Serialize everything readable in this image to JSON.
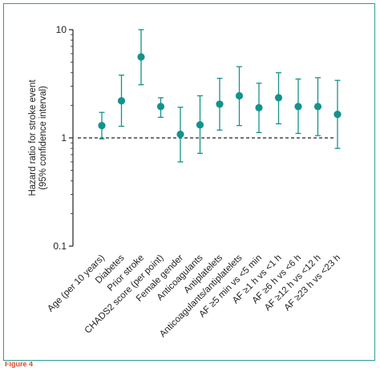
{
  "chart_data": {
    "type": "scatter",
    "subtype": "forest-plot",
    "ylabel_lines": [
      "Hazard ratio for stroke event",
      "(95% confidence interval)"
    ],
    "yscale": "log",
    "ylim": [
      0.1,
      10
    ],
    "yticks": [
      {
        "value": 10,
        "label": "10"
      },
      {
        "value": 1,
        "label": "1"
      },
      {
        "value": 0.1,
        "label": "0.1"
      }
    ],
    "reference_line": 1,
    "grid": false,
    "categories": [
      "Age (per 10 years)",
      "Diabetes",
      "Prior stroke",
      "CHADS2 score (per point)",
      "Female gender",
      "Anticoagulants",
      "Antiplatelets",
      "Anticoagulants/antiplatelets",
      "AF ≥5 min vs <5 min",
      "AF ≥1 h vs <1 h",
      "AF ≥6 h vs <6 h",
      "AF ≥12 h vs <12 h",
      "AF ≥23 h vs <23 h"
    ],
    "values": [
      1.3,
      2.2,
      5.6,
      1.95,
      1.08,
      1.32,
      2.05,
      2.45,
      1.9,
      2.35,
      1.95,
      1.95,
      1.65
    ],
    "ci_lower": [
      0.98,
      1.28,
      3.1,
      1.55,
      0.6,
      0.72,
      1.18,
      1.3,
      1.12,
      1.35,
      1.1,
      1.05,
      0.8
    ],
    "ci_upper": [
      1.72,
      3.8,
      10.0,
      2.35,
      1.92,
      2.45,
      3.55,
      4.55,
      3.2,
      4.0,
      3.5,
      3.6,
      3.4
    ],
    "colors": {
      "marker": "#13938b",
      "axis": "#222222",
      "reference": "#222222",
      "border": "#2a9d96"
    }
  },
  "caption": {
    "figure_label": "Figure 4",
    "text": ""
  }
}
